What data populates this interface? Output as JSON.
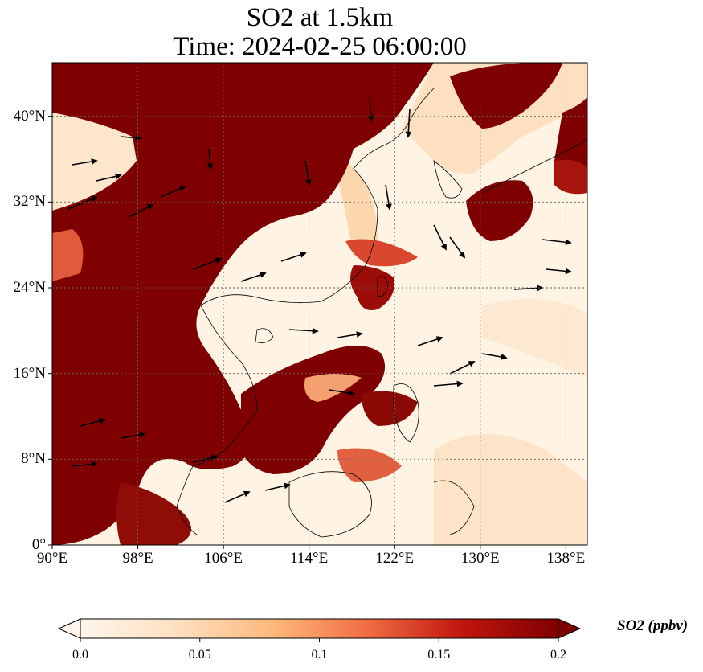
{
  "title": "SO2 at 1.5km",
  "subtitle": "Time: 2024-02-25 06:00:00",
  "map": {
    "lon_range": [
      90,
      140
    ],
    "lat_range": [
      0,
      45
    ],
    "lon_ticks": [
      {
        "value": 90,
        "label": "90°E"
      },
      {
        "value": 98,
        "label": "98°E"
      },
      {
        "value": 106,
        "label": "106°E"
      },
      {
        "value": 114,
        "label": "114°E"
      },
      {
        "value": 122,
        "label": "122°E"
      },
      {
        "value": 130,
        "label": "130°E"
      },
      {
        "value": 138,
        "label": "138°E"
      }
    ],
    "lat_ticks": [
      {
        "value": 0,
        "label": "0°"
      },
      {
        "value": 8,
        "label": "8°N"
      },
      {
        "value": 16,
        "label": "16°N"
      },
      {
        "value": 24,
        "label": "24°N"
      },
      {
        "value": 32,
        "label": "32°N"
      },
      {
        "value": 40,
        "label": "40°N"
      }
    ],
    "gridlines": true,
    "field_variable": "SO2",
    "overlay": "wind vectors"
  },
  "colorbar": {
    "label": "SO2 (ppbv)",
    "min": 0.0,
    "max": 0.2,
    "extend": "both",
    "ticks": [
      {
        "value": 0.0,
        "label": "0.0"
      },
      {
        "value": 0.05,
        "label": "0.05"
      },
      {
        "value": 0.1,
        "label": "0.1"
      },
      {
        "value": 0.15,
        "label": "0.15"
      },
      {
        "value": 0.2,
        "label": "0.2"
      }
    ],
    "colors": [
      "#fff5eb",
      "#fdd9a8",
      "#fdae6b",
      "#e8553a",
      "#b10f0a",
      "#7f0000"
    ]
  }
}
